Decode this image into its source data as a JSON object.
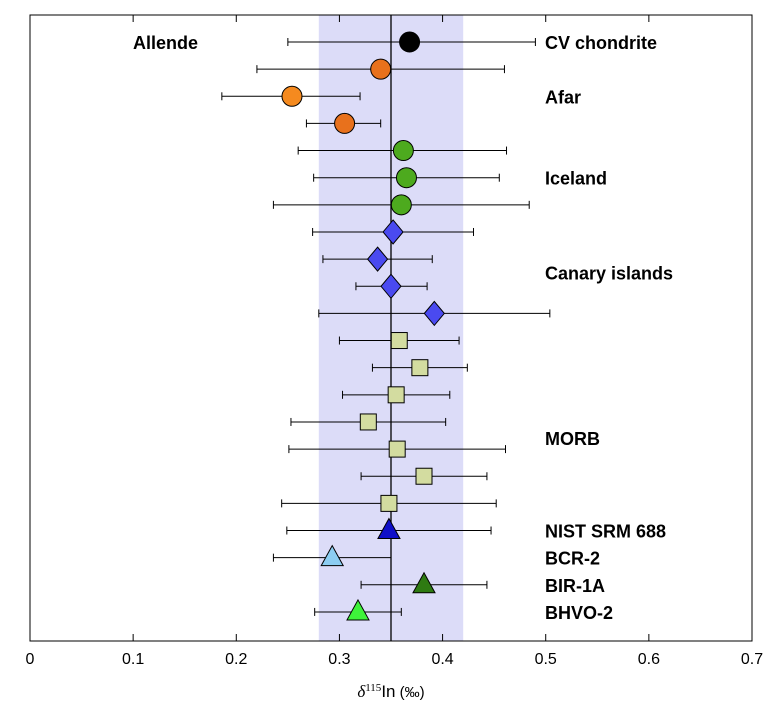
{
  "chart_data": {
    "type": "scatter",
    "title": "",
    "xlabel": {
      "symbol": "δ",
      "superscript": "115",
      "element": "In",
      "unit": " (‰)"
    },
    "ylabel": "",
    "xlim": [
      0,
      0.7
    ],
    "xticks": [
      0,
      0.1,
      0.2,
      0.3,
      0.4,
      0.5,
      0.6,
      0.7
    ],
    "xtick_labels": [
      "0",
      "0.1",
      "0.2",
      "0.3",
      "0.4",
      "0.5",
      "0.6",
      "0.7"
    ],
    "grid": false,
    "reference_band": {
      "x0": 0.28,
      "x1": 0.42,
      "color": "#dcdcf8"
    },
    "reference_line": {
      "x": 0.35,
      "color": "#000000"
    },
    "points": [
      {
        "row": 1,
        "x": 0.368,
        "err_low": 0.25,
        "err_high": 0.49,
        "marker": "circle",
        "color": "#000000"
      },
      {
        "row": 2,
        "x": 0.34,
        "err_low": 0.22,
        "err_high": 0.46,
        "marker": "circle",
        "color": "#e8711c"
      },
      {
        "row": 3,
        "x": 0.254,
        "err_low": 0.186,
        "err_high": 0.32,
        "marker": "circle",
        "color": "#f58a1f"
      },
      {
        "row": 4,
        "x": 0.305,
        "err_low": 0.268,
        "err_high": 0.34,
        "marker": "circle",
        "color": "#e8711c"
      },
      {
        "row": 5,
        "x": 0.362,
        "err_low": 0.26,
        "err_high": 0.462,
        "marker": "circle",
        "color": "#4daa1e"
      },
      {
        "row": 6,
        "x": 0.365,
        "err_low": 0.275,
        "err_high": 0.455,
        "marker": "circle",
        "color": "#4daa1e"
      },
      {
        "row": 7,
        "x": 0.36,
        "err_low": 0.236,
        "err_high": 0.484,
        "marker": "circle",
        "color": "#4daa1e"
      },
      {
        "row": 8,
        "x": 0.352,
        "err_low": 0.274,
        "err_high": 0.43,
        "marker": "diamond",
        "color": "#4a4af0"
      },
      {
        "row": 9,
        "x": 0.337,
        "err_low": 0.284,
        "err_high": 0.39,
        "marker": "diamond",
        "color": "#4a4af0"
      },
      {
        "row": 10,
        "x": 0.35,
        "err_low": 0.316,
        "err_high": 0.385,
        "marker": "diamond",
        "color": "#4a4af0"
      },
      {
        "row": 11,
        "x": 0.392,
        "err_low": 0.28,
        "err_high": 0.504,
        "marker": "diamond",
        "color": "#4a4af0"
      },
      {
        "row": 12,
        "x": 0.358,
        "err_low": 0.3,
        "err_high": 0.416,
        "marker": "square",
        "color": "#d3dca0"
      },
      {
        "row": 13,
        "x": 0.378,
        "err_low": 0.332,
        "err_high": 0.424,
        "marker": "square",
        "color": "#d3dca0"
      },
      {
        "row": 14,
        "x": 0.355,
        "err_low": 0.303,
        "err_high": 0.407,
        "marker": "square",
        "color": "#d3dca0"
      },
      {
        "row": 15,
        "x": 0.328,
        "err_low": 0.253,
        "err_high": 0.403,
        "marker": "square",
        "color": "#d3dca0"
      },
      {
        "row": 16,
        "x": 0.356,
        "err_low": 0.251,
        "err_high": 0.461,
        "marker": "square",
        "color": "#d3dca0"
      },
      {
        "row": 17,
        "x": 0.382,
        "err_low": 0.321,
        "err_high": 0.443,
        "marker": "square",
        "color": "#d3dca0"
      },
      {
        "row": 18,
        "x": 0.348,
        "err_low": 0.244,
        "err_high": 0.452,
        "marker": "square",
        "color": "#d3dca0"
      },
      {
        "row": 19,
        "x": 0.348,
        "err_low": 0.249,
        "err_high": 0.447,
        "marker": "triangle",
        "color": "#1010c8"
      },
      {
        "row": 20,
        "x": 0.293,
        "err_low": 0.236,
        "err_high": 0.35,
        "marker": "triangle",
        "color": "#8ccdf2"
      },
      {
        "row": 21,
        "x": 0.382,
        "err_low": 0.321,
        "err_high": 0.443,
        "marker": "triangle",
        "color": "#2e7a12"
      },
      {
        "row": 22,
        "x": 0.318,
        "err_low": 0.276,
        "err_high": 0.36,
        "marker": "triangle",
        "color": "#3ef23a"
      }
    ],
    "annotations": [
      {
        "text": "Allende",
        "row": 1,
        "side": "left"
      },
      {
        "text": "CV chondrite",
        "row": 1,
        "side": "right"
      },
      {
        "text": "Afar",
        "row": 3,
        "side": "right"
      },
      {
        "text": "Iceland",
        "row": 6,
        "side": "right"
      },
      {
        "text": "Canary islands",
        "row": 9.5,
        "side": "right"
      },
      {
        "text": "MORB",
        "row": 15.6,
        "side": "right"
      },
      {
        "text": "NIST SRM 688",
        "row": 19,
        "side": "right"
      },
      {
        "text": "BCR-2",
        "row": 20,
        "side": "right"
      },
      {
        "text": "BIR-1A",
        "row": 21,
        "side": "right"
      },
      {
        "text": "BHVO-2",
        "row": 22,
        "side": "right"
      }
    ]
  }
}
